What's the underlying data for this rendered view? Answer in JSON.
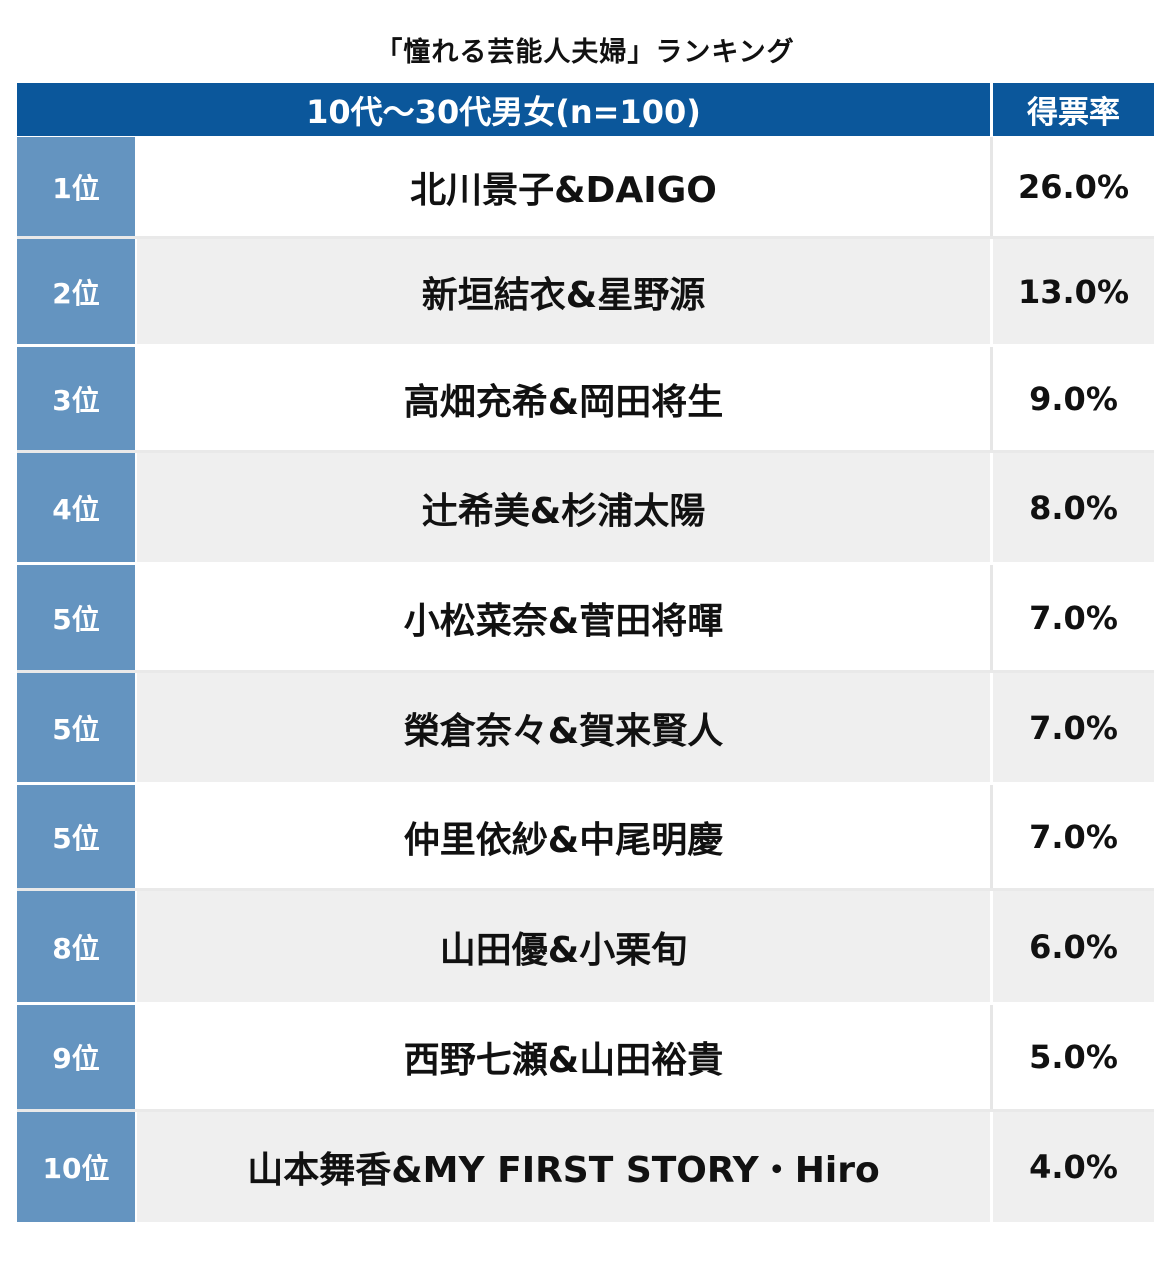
{
  "chart_data": {
    "type": "table",
    "title": "「憧れる芸能人夫婦」ランキング",
    "header": {
      "group": "10代〜30代男女(n=100)",
      "rate_label": "得票率"
    },
    "rows": [
      {
        "rank": "1位",
        "name": "北川景子&DAIGO",
        "rate": "26.0%",
        "value": 26.0
      },
      {
        "rank": "2位",
        "name": "新垣結衣&星野源",
        "rate": "13.0%",
        "value": 13.0
      },
      {
        "rank": "3位",
        "name": "高畑充希&岡田将生",
        "rate": "9.0%",
        "value": 9.0
      },
      {
        "rank": "4位",
        "name": "辻希美&杉浦太陽",
        "rate": "8.0%",
        "value": 8.0
      },
      {
        "rank": "5位",
        "name": "小松菜奈&菅田将暉",
        "rate": "7.0%",
        "value": 7.0
      },
      {
        "rank": "5位",
        "name": "榮倉奈々&賀来賢人",
        "rate": "7.0%",
        "value": 7.0
      },
      {
        "rank": "5位",
        "name": "仲里依紗&中尾明慶",
        "rate": "7.0%",
        "value": 7.0
      },
      {
        "rank": "8位",
        "name": "山田優&小栗旬",
        "rate": "6.0%",
        "value": 6.0
      },
      {
        "rank": "9位",
        "name": "西野七瀬&山田裕貴",
        "rate": "5.0%",
        "value": 5.0
      },
      {
        "rank": "10位",
        "name": "山本舞香&MY FIRST STORY・Hiro",
        "rate": "4.0%",
        "value": 4.0
      }
    ],
    "colors": {
      "header_bg": "#0b579b",
      "rank_bg": "#6494c0",
      "row_alt_bg": "#efefef"
    }
  }
}
